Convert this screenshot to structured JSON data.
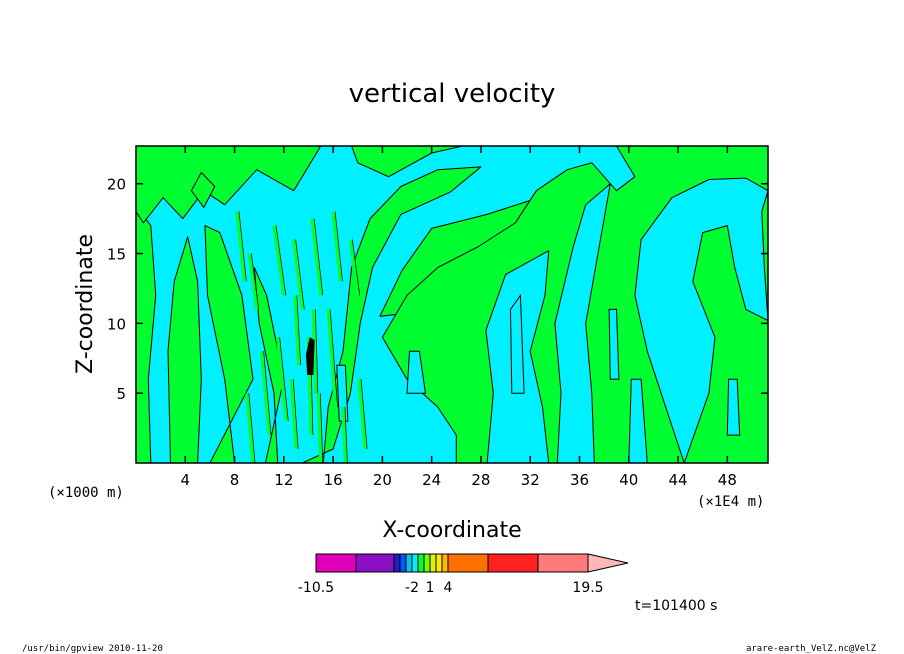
{
  "chart_data": {
    "type": "heatmap",
    "title": "vertical velocity",
    "xlabel": "X-coordinate",
    "ylabel": "Z-coordinate",
    "x_unit": "(×1000 m)",
    "x_multiplier": "(×1E4 m)",
    "xlim": [
      0,
      51.3
    ],
    "ylim": [
      0,
      22.7
    ],
    "x_ticks": [
      4,
      8,
      12,
      16,
      20,
      24,
      28,
      32,
      36,
      40,
      44,
      48
    ],
    "y_ticks": [
      5,
      10,
      15,
      20
    ],
    "grid": false,
    "colorbar": {
      "levels": [
        -10.5,
        -8,
        -6,
        -4,
        -3,
        -2,
        -1,
        0,
        1,
        2,
        3,
        4,
        7.5,
        11.5,
        15.5,
        19.5
      ],
      "colors": [
        "#e000b8",
        "#8a10c8",
        "#2020c0",
        "#0058ff",
        "#00c8e0",
        "#00f0ff",
        "#00ff30",
        "#70ff00",
        "#e0f000",
        "#ffe800",
        "#ffb800",
        "#ff7000",
        "#ff2020",
        "#ff7a7a",
        "#ffb8b8"
      ],
      "tick_labels": [
        "-10.5",
        "-2",
        "1",
        "4",
        "19.5"
      ],
      "tick_values": [
        -10.5,
        -2,
        1,
        4,
        19.5
      ]
    },
    "field_colors": {
      "negative": "#00f0ff",
      "positive": "#00ff30",
      "strong": "#000000"
    }
  },
  "annotations": {
    "time": "t=101400 s",
    "footer_left": "/usr/bin/gpview   2010-11-20",
    "footer_right": "arare-earth_VelZ.nc@VelZ"
  }
}
